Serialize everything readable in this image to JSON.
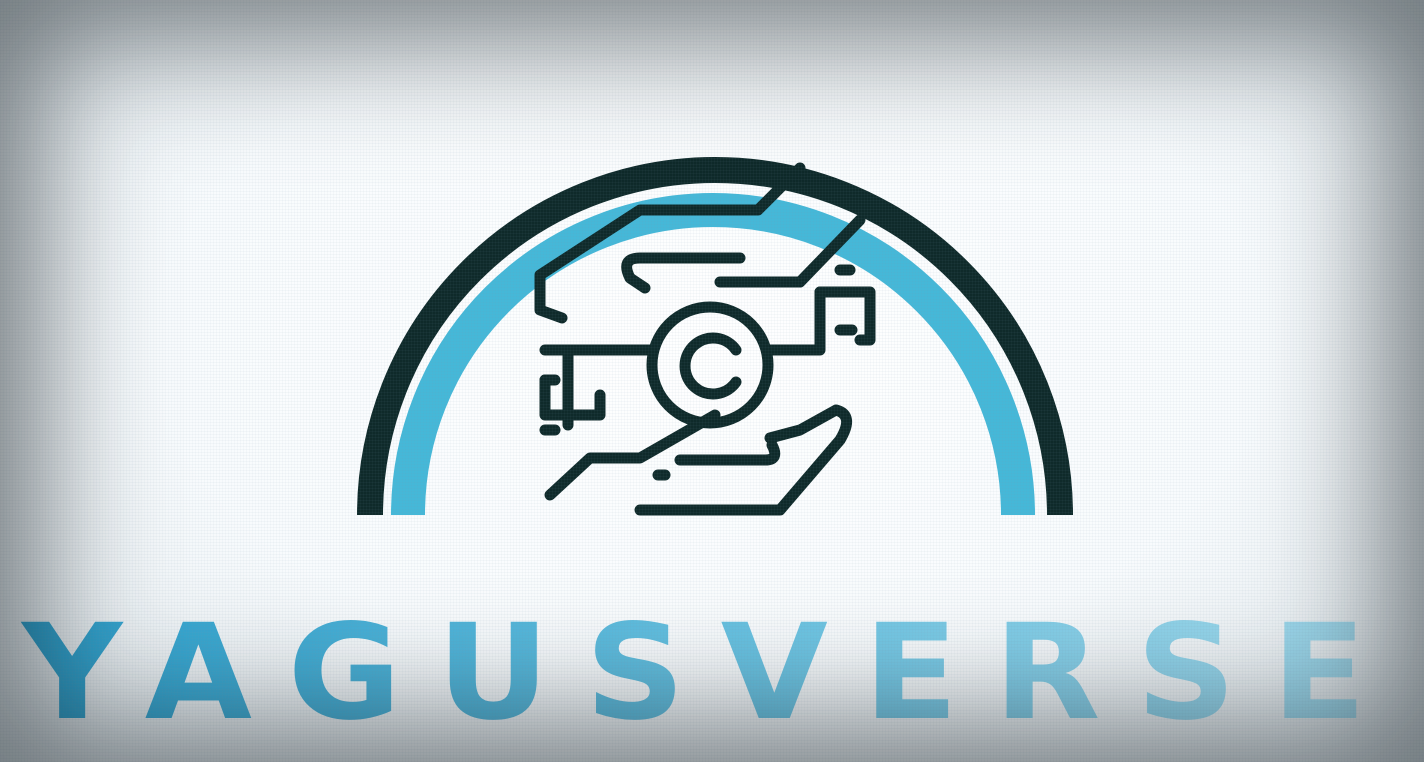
{
  "brand": {
    "name": "YAGUSVERSE",
    "colors": {
      "dark": "#0f2a2a",
      "accent": "#45b8d8",
      "wordmark_start": "#2a9fcc",
      "wordmark_end": "#8fd4ea",
      "background": "#ffffff"
    },
    "emblem_icon": "hands-holding-camera-lens-icon"
  }
}
